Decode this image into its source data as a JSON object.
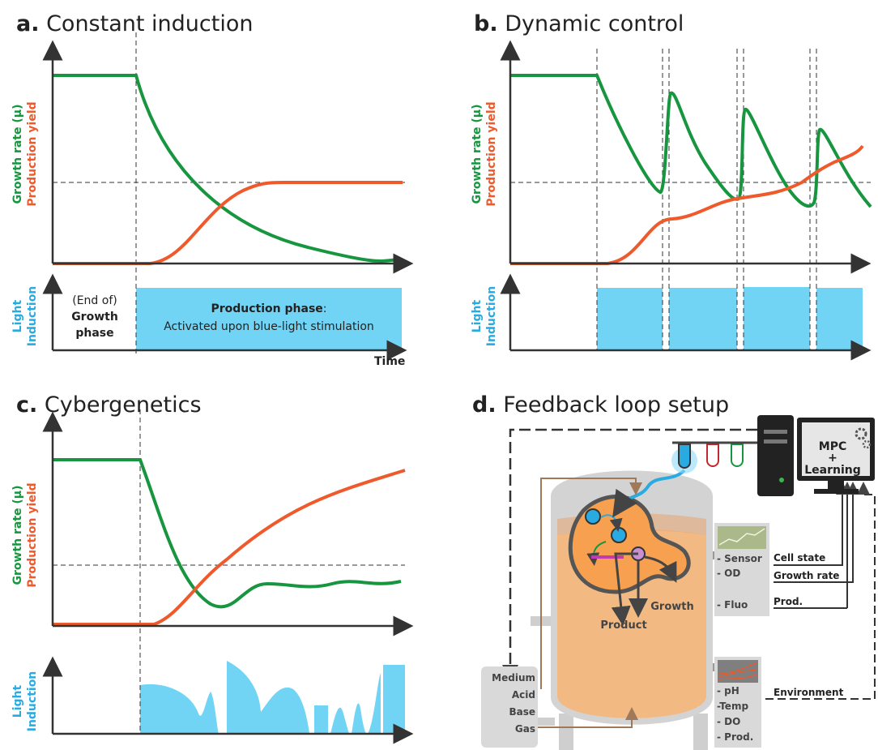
{
  "panels": [
    {
      "letter": "a.",
      "title": "Constant induction",
      "growth_label": "Growth rate (µ)",
      "production_label": "Production yield",
      "light_label": [
        "Light",
        "Induction"
      ],
      "growth_phase": [
        "(End of)",
        "Growth",
        "phase"
      ],
      "production_phase": {
        "name": "Production phase",
        "separator": ":",
        "description": "Activated upon blue-light stimulation"
      },
      "x_label": "Time"
    },
    {
      "letter": "b.",
      "title": "Dynamic control",
      "growth_label": "Growth rate (µ)",
      "production_label": "Production yield",
      "light_label": [
        "Light",
        "Induction"
      ]
    },
    {
      "letter": "c.",
      "title": "Cybergenetics",
      "growth_label": "Growth rate (µ)",
      "production_label": "Production yield",
      "light_label": [
        "Light",
        "Induction"
      ]
    },
    {
      "letter": "d.",
      "title": "Feedback loop setup",
      "computer": [
        "MPC",
        "+",
        "Learning"
      ],
      "sensor_box": [
        "- Sensor",
        "- OD",
        "- Fluo"
      ],
      "signals": [
        "Cell state",
        "Growth rate",
        "Prod."
      ],
      "cell": {
        "product": "Product",
        "growth": "Growth"
      },
      "inputs": [
        "Medium",
        "Acid",
        "Base",
        "Gas"
      ],
      "environment_box": [
        "- pH",
        "-Temp",
        "- DO",
        "- Prod."
      ],
      "environment_label": "Environment"
    }
  ]
}
